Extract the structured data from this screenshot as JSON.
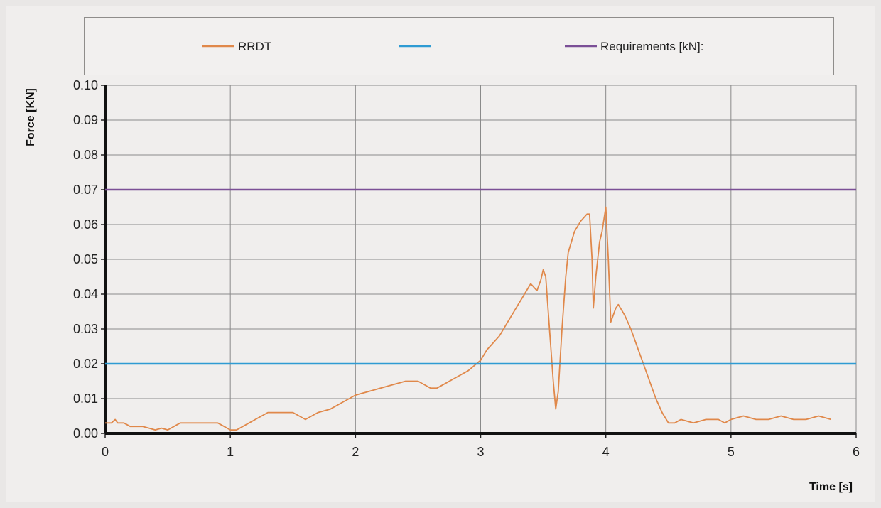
{
  "chart_data": {
    "type": "line",
    "title": "",
    "xlabel": "Time [s]",
    "ylabel": "Force [KN]",
    "xlim": [
      0,
      6
    ],
    "ylim": [
      0,
      0.1
    ],
    "x_ticks": [
      "0",
      "1",
      "2",
      "3",
      "4",
      "5",
      "6"
    ],
    "y_ticks": [
      "0.00",
      "0.01",
      "0.02",
      "0.03",
      "0.04",
      "0.05",
      "0.06",
      "0.07",
      "0.08",
      "0.09",
      "0.10"
    ],
    "grid": true,
    "legend_position": "top",
    "series": [
      {
        "name": "RRDT",
        "color": "#e0884a",
        "x": [
          0,
          0.05,
          0.08,
          0.1,
          0.15,
          0.2,
          0.3,
          0.35,
          0.4,
          0.45,
          0.5,
          0.55,
          0.6,
          0.65,
          0.7,
          0.8,
          0.9,
          0.95,
          1.0,
          1.05,
          1.1,
          1.15,
          1.2,
          1.25,
          1.3,
          1.4,
          1.5,
          1.55,
          1.6,
          1.65,
          1.7,
          1.8,
          1.9,
          2.0,
          2.1,
          2.2,
          2.3,
          2.4,
          2.5,
          2.55,
          2.6,
          2.65,
          2.7,
          2.8,
          2.9,
          3.0,
          3.05,
          3.1,
          3.15,
          3.2,
          3.25,
          3.3,
          3.35,
          3.4,
          3.45,
          3.48,
          3.5,
          3.52,
          3.55,
          3.58,
          3.6,
          3.62,
          3.65,
          3.68,
          3.7,
          3.75,
          3.8,
          3.85,
          3.87,
          3.89,
          3.9,
          3.92,
          3.95,
          3.97,
          4.0,
          4.02,
          4.04,
          4.06,
          4.08,
          4.1,
          4.15,
          4.2,
          4.25,
          4.3,
          4.35,
          4.4,
          4.45,
          4.5,
          4.55,
          4.6,
          4.7,
          4.8,
          4.9,
          4.95,
          5.0,
          5.1,
          5.2,
          5.3,
          5.4,
          5.5,
          5.6,
          5.7,
          5.8
        ],
        "values": [
          0.003,
          0.003,
          0.004,
          0.003,
          0.003,
          0.002,
          0.002,
          0.0015,
          0.001,
          0.0015,
          0.001,
          0.002,
          0.003,
          0.003,
          0.003,
          0.003,
          0.003,
          0.002,
          0.001,
          0.001,
          0.002,
          0.003,
          0.004,
          0.005,
          0.006,
          0.006,
          0.006,
          0.005,
          0.004,
          0.005,
          0.006,
          0.007,
          0.009,
          0.011,
          0.012,
          0.013,
          0.014,
          0.015,
          0.015,
          0.014,
          0.013,
          0.013,
          0.014,
          0.016,
          0.018,
          0.021,
          0.024,
          0.026,
          0.028,
          0.031,
          0.034,
          0.037,
          0.04,
          0.043,
          0.041,
          0.044,
          0.047,
          0.045,
          0.03,
          0.015,
          0.007,
          0.012,
          0.03,
          0.045,
          0.052,
          0.058,
          0.061,
          0.063,
          0.063,
          0.05,
          0.036,
          0.045,
          0.055,
          0.058,
          0.065,
          0.05,
          0.032,
          0.034,
          0.036,
          0.037,
          0.034,
          0.03,
          0.025,
          0.02,
          0.015,
          0.01,
          0.006,
          0.003,
          0.003,
          0.004,
          0.003,
          0.004,
          0.004,
          0.003,
          0.004,
          0.005,
          0.004,
          0.004,
          0.005,
          0.004,
          0.004,
          0.005,
          0.004
        ]
      },
      {
        "name": "",
        "color": "#2f9bd3",
        "x": [
          0,
          6
        ],
        "values": [
          0.02,
          0.02
        ]
      },
      {
        "name": "Requirements [kN]:",
        "color": "#7b4f96",
        "x": [
          0,
          6
        ],
        "values": [
          0.07,
          0.07
        ]
      }
    ]
  }
}
